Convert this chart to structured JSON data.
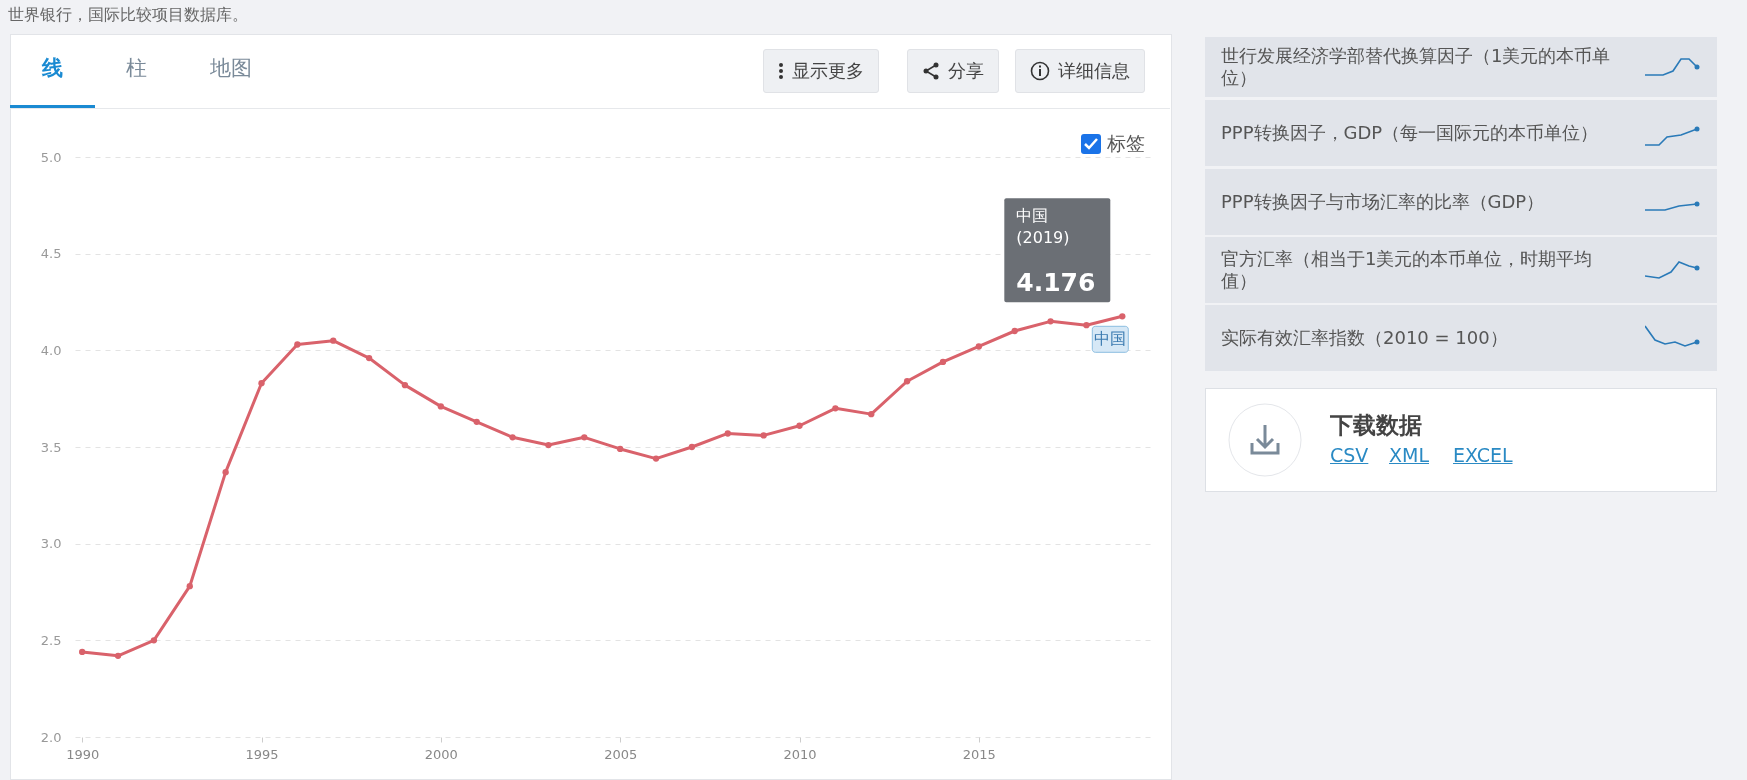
{
  "chart_data": {
    "type": "line",
    "x": [
      1990,
      1991,
      1992,
      1993,
      1994,
      1995,
      1996,
      1997,
      1998,
      1999,
      2000,
      2001,
      2002,
      2003,
      2004,
      2005,
      2006,
      2007,
      2008,
      2009,
      2010,
      2011,
      2012,
      2013,
      2014,
      2015,
      2016,
      2017,
      2018,
      2019
    ],
    "series": [
      {
        "name": "中国",
        "color": "#d9626b",
        "values": [
          2.44,
          2.42,
          2.5,
          2.78,
          3.37,
          3.83,
          4.03,
          4.05,
          3.96,
          3.82,
          3.71,
          3.63,
          3.55,
          3.51,
          3.55,
          3.49,
          3.44,
          3.5,
          3.57,
          3.56,
          3.61,
          3.7,
          3.67,
          3.84,
          3.94,
          4.02,
          4.1,
          4.15,
          4.13,
          4.176
        ],
        "value_labels": [
          null,
          null,
          null,
          null,
          null,
          null,
          null,
          null,
          null,
          null,
          null,
          null,
          null,
          null,
          null,
          null,
          null,
          null,
          null,
          null,
          null,
          null,
          null,
          null,
          null,
          null,
          null,
          null,
          null,
          "4.176"
        ]
      }
    ],
    "xlim": [
      1989.8,
      2019.8
    ],
    "xticks": [
      1990,
      1995,
      2000,
      2005,
      2010,
      2015
    ],
    "ylim": [
      2,
      5
    ],
    "yticks": [
      {
        "value": 2,
        "label": "2.0"
      },
      {
        "value": 2.5,
        "label": "2.5"
      },
      {
        "value": 3,
        "label": "3.0"
      },
      {
        "value": 3.5,
        "label": "3.5"
      },
      {
        "value": 4,
        "label": "4.0"
      },
      {
        "value": 4.5,
        "label": "4.5"
      },
      {
        "value": 5,
        "label": "5.0"
      }
    ],
    "grid": "y",
    "marker": "circle",
    "line_style": "solid",
    "annotations": [
      "世界银行，国际比较项目数据库。",
      "中国 (2019)",
      "线",
      "柱",
      "地图",
      "显示更多",
      "分享",
      "详细信息",
      "标签",
      "世行发展经济学部替代换算因子（1美元的本币单位）",
      "PPP转换因子，GDP（每一国际元的本币单位）",
      "PPP转换因子与市场汇率的比率（GDP）",
      "官方汇率（相当于1美元的本币单位，时期平均值）",
      "实际有效汇率指数（2010 = 100）",
      "下载数据",
      "CSV",
      "XML",
      "EXCEL"
    ]
  }
}
